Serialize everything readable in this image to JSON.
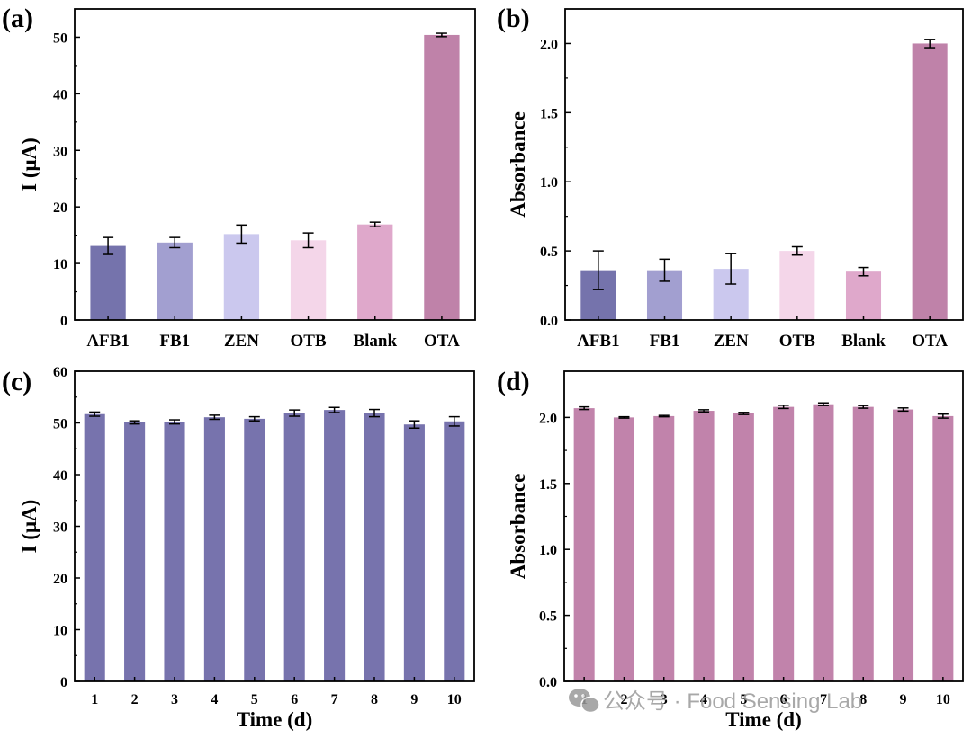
{
  "colors": {
    "afb1": "#7573ac",
    "fb1": "#a29fd0",
    "zen": "#cbc8ee",
    "otb": "#f4d6e9",
    "blank": "#dfa8cb",
    "ota": "#bf82a9",
    "series_c": "#7773ad",
    "series_d": "#c183ab"
  },
  "watermark": {
    "icon": "wechat-icon",
    "text": "公众号 · Food Sensing Lab"
  },
  "chart_data": [
    {
      "panel": "(a)",
      "type": "bar",
      "categories": [
        "AFB1",
        "FB1",
        "ZEN",
        "OTB",
        "Blank",
        "OTA"
      ],
      "values": [
        13.1,
        13.7,
        15.2,
        14.1,
        16.9,
        50.4
      ],
      "errors": [
        1.5,
        0.9,
        1.6,
        1.3,
        0.4,
        0.3
      ],
      "bar_colors": [
        "#7573ac",
        "#a29fd0",
        "#cbc8ee",
        "#f4d6e9",
        "#dfa8cb",
        "#bf82a9"
      ],
      "xlabel": "",
      "ylabel": "I (μA)",
      "ylim": [
        0,
        55
      ],
      "yticks": [
        0,
        10,
        20,
        30,
        40,
        50
      ],
      "ytick_labels": [
        "0",
        "10",
        "20",
        "30",
        "40",
        "50"
      ]
    },
    {
      "panel": "(b)",
      "type": "bar",
      "categories": [
        "AFB1",
        "FB1",
        "ZEN",
        "OTB",
        "Blank",
        "OTA"
      ],
      "values": [
        0.36,
        0.36,
        0.37,
        0.5,
        0.35,
        2.0
      ],
      "errors": [
        0.14,
        0.08,
        0.11,
        0.03,
        0.03,
        0.03
      ],
      "bar_colors": [
        "#7573ac",
        "#a29fd0",
        "#cbc8ee",
        "#f4d6e9",
        "#dfa8cb",
        "#bf82a9"
      ],
      "xlabel": "",
      "ylabel": "Absorbance",
      "ylim": [
        0,
        2.25
      ],
      "yticks": [
        0,
        0.5,
        1.0,
        1.5,
        2.0
      ],
      "ytick_labels": [
        "0.0",
        "0.5",
        "1.0",
        "1.5",
        "2.0"
      ]
    },
    {
      "panel": "(c)",
      "type": "bar",
      "categories": [
        "1",
        "2",
        "3",
        "4",
        "5",
        "6",
        "7",
        "8",
        "9",
        "10"
      ],
      "values": [
        51.7,
        50.1,
        50.2,
        51.1,
        50.8,
        51.9,
        52.5,
        51.9,
        49.7,
        50.3
      ],
      "errors": [
        0.4,
        0.3,
        0.4,
        0.4,
        0.4,
        0.6,
        0.5,
        0.7,
        0.7,
        0.9
      ],
      "bar_colors": [
        "#7773ad"
      ],
      "xlabel": "Time (d)",
      "ylabel": "I (μA)",
      "ylim": [
        0,
        60
      ],
      "yticks": [
        0,
        10,
        20,
        30,
        40,
        50,
        60
      ],
      "ytick_labels": [
        "0",
        "10",
        "20",
        "30",
        "40",
        "50",
        "60"
      ]
    },
    {
      "panel": "(d)",
      "type": "bar",
      "categories": [
        "1",
        "2",
        "3",
        "4",
        "5",
        "6",
        "7",
        "8",
        "9",
        "10"
      ],
      "values": [
        2.07,
        2.0,
        2.01,
        2.05,
        2.03,
        2.08,
        2.1,
        2.08,
        2.06,
        2.01
      ],
      "errors": [
        0.01,
        0.005,
        0.005,
        0.008,
        0.008,
        0.012,
        0.01,
        0.01,
        0.012,
        0.015
      ],
      "bar_colors": [
        "#c183ab"
      ],
      "xlabel": "Time (d)",
      "ylabel": "Absorbance",
      "ylim": [
        0,
        2.35
      ],
      "yticks": [
        0,
        0.5,
        1.0,
        1.5,
        2.0
      ],
      "ytick_labels": [
        "0.0",
        "0.5",
        "1.0",
        "1.5",
        "2.0"
      ]
    }
  ]
}
